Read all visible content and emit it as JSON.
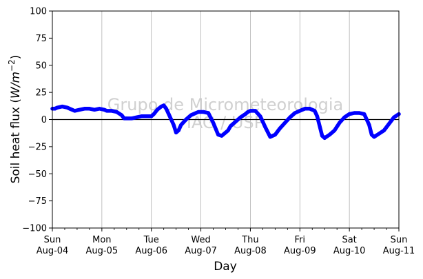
{
  "chart_data": {
    "type": "line",
    "title": "",
    "xlabel": "Day",
    "ylabel": "Soil heat flux (W/m⁻²)",
    "ylabel_parts": {
      "pre": "Soil heat flux (",
      "italic": "W/m",
      "sup": "−2",
      "post": ")"
    },
    "ylim": [
      -100,
      100
    ],
    "yticks": [
      100,
      75,
      50,
      25,
      0,
      -25,
      -50,
      -75,
      -100
    ],
    "ytick_labels": [
      "100",
      "75",
      "50",
      "25",
      "0",
      "−25",
      "−50",
      "−75",
      "−100"
    ],
    "xlim_days": [
      0,
      7
    ],
    "xticks": [
      {
        "day": 0,
        "line1": "Sun",
        "line2": "Aug-04"
      },
      {
        "day": 1,
        "line1": "Mon",
        "line2": "Aug-05"
      },
      {
        "day": 2,
        "line1": "Tue",
        "line2": "Aug-06"
      },
      {
        "day": 3,
        "line1": "Wed",
        "line2": "Aug-07"
      },
      {
        "day": 4,
        "line1": "Thu",
        "line2": "Aug-08"
      },
      {
        "day": 5,
        "line1": "Fri",
        "line2": "Aug-09"
      },
      {
        "day": 6,
        "line1": "Sat",
        "line2": "Aug-10"
      },
      {
        "day": 7,
        "line1": "Sun",
        "line2": "Aug-11"
      }
    ],
    "grid": "vertical-major",
    "zero_line": true,
    "watermark": [
      "Grupo de Micrometeorologia",
      "IAG / USP"
    ],
    "series": [
      {
        "color": "#0000ff",
        "x_days": [
          0,
          0.05,
          0.1,
          0.2,
          0.3,
          0.35,
          0.45,
          0.55,
          0.65,
          0.75,
          0.85,
          0.95,
          1.05,
          1.1,
          1.2,
          1.3,
          1.4,
          1.45,
          1.5,
          1.6,
          1.7,
          1.8,
          1.9,
          2.0,
          2.05,
          2.12,
          2.2,
          2.25,
          2.3,
          2.35,
          2.4,
          2.45,
          2.5,
          2.55,
          2.6,
          2.7,
          2.8,
          2.9,
          2.95,
          3.05,
          3.15,
          3.25,
          3.35,
          3.42,
          3.5,
          3.55,
          3.6,
          3.7,
          3.8,
          3.9,
          3.95,
          4.0,
          4.1,
          4.2,
          4.3,
          4.4,
          4.5,
          4.55,
          4.6,
          4.7,
          4.8,
          4.9,
          5.0,
          5.1,
          5.2,
          5.3,
          5.35,
          5.4,
          5.45,
          5.5,
          5.6,
          5.7,
          5.8,
          5.9,
          6.0,
          6.1,
          6.2,
          6.3,
          6.35,
          6.4,
          6.45,
          6.5,
          6.6,
          6.7,
          6.8,
          6.9,
          7.0
        ],
        "values": [
          10,
          10,
          11,
          12,
          11,
          10,
          8,
          9,
          10,
          10,
          9,
          10,
          9,
          8,
          8,
          7,
          4,
          1,
          1,
          1,
          2,
          3,
          3,
          3,
          5,
          9,
          12,
          13,
          10,
          5,
          0,
          -5,
          -12,
          -10,
          -5,
          0,
          4,
          6,
          7,
          7,
          6,
          -3,
          -14,
          -15,
          -12,
          -10,
          -6,
          -2,
          2,
          5,
          7,
          8,
          8,
          3,
          -7,
          -16,
          -14,
          -11,
          -8,
          -3,
          2,
          6,
          8,
          10,
          10,
          8,
          3,
          -6,
          -15,
          -17,
          -14,
          -10,
          -3,
          2,
          5,
          6,
          6,
          5,
          0,
          -5,
          -14,
          -16,
          -13,
          -10,
          -4,
          2,
          5
        ]
      }
    ]
  }
}
